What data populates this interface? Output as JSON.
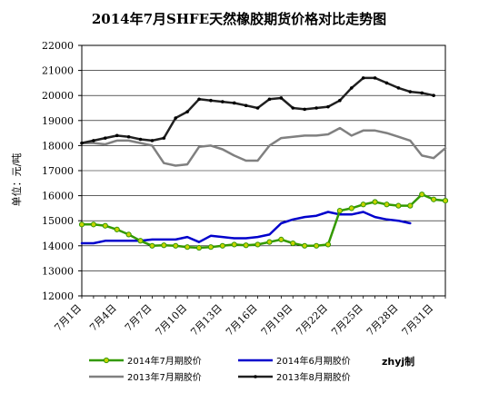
{
  "chart_data": {
    "type": "line",
    "title": "2014年7月SHFE天然橡胶期货价格对比走势图",
    "ylabel": "单位：元/吨",
    "xlabel": "",
    "ylim": [
      12000,
      22000
    ],
    "yticks": [
      12000,
      13000,
      14000,
      15000,
      16000,
      17000,
      18000,
      19000,
      20000,
      21000,
      22000
    ],
    "x_range": [
      1,
      32
    ],
    "x_ticks": [
      1,
      4,
      7,
      10,
      13,
      16,
      19,
      22,
      25,
      28,
      31
    ],
    "x_tick_labels": [
      "7月1日",
      "7月4日",
      "7月7日",
      "7月10日",
      "7月13日",
      "7月16日",
      "7月19日",
      "7月22日",
      "7月25日",
      "7月28日",
      "7月31日"
    ],
    "grid": "horizontal",
    "legend_position": "bottom",
    "credit": "zhyj制",
    "series": [
      {
        "name": "2014年7月期胶价",
        "color": "#339900",
        "marker": "circle",
        "marker_color": "#c8d400",
        "x": [
          1,
          2,
          3,
          4,
          5,
          6,
          7,
          8,
          9,
          10,
          11,
          12,
          13,
          14,
          15,
          16,
          17,
          18,
          19,
          20,
          21,
          22,
          23,
          24,
          25,
          26,
          27,
          28,
          29,
          30,
          31,
          32
        ],
        "y": [
          14850,
          14850,
          14800,
          14650,
          14450,
          14200,
          14000,
          14020,
          14000,
          13950,
          13920,
          13950,
          14000,
          14050,
          14020,
          14050,
          14150,
          14250,
          14100,
          14000,
          14000,
          14050,
          15400,
          15500,
          15650,
          15750,
          15650,
          15600,
          15600,
          16050,
          15850,
          15800
        ]
      },
      {
        "name": "2014年6月期胶价",
        "color": "#0000cc",
        "marker": "none",
        "x": [
          1,
          2,
          3,
          4,
          5,
          6,
          7,
          8,
          9,
          10,
          11,
          12,
          13,
          14,
          15,
          16,
          17,
          18,
          19,
          20,
          21,
          22,
          23,
          24,
          25,
          26,
          27,
          28,
          29
        ],
        "y": [
          14100,
          14100,
          14200,
          14200,
          14200,
          14200,
          14250,
          14250,
          14250,
          14350,
          14150,
          14400,
          14350,
          14300,
          14300,
          14350,
          14450,
          14900,
          15050,
          15150,
          15200,
          15350,
          15250,
          15250,
          15350,
          15150,
          15050,
          15000,
          14900
        ]
      },
      {
        "name": "2013年7月期胶价",
        "color": "#808080",
        "marker": "none",
        "x": [
          1,
          2,
          3,
          4,
          5,
          6,
          7,
          8,
          9,
          10,
          11,
          12,
          13,
          14,
          15,
          16,
          17,
          18,
          19,
          20,
          21,
          22,
          23,
          24,
          25,
          26,
          27,
          28,
          29,
          30,
          31,
          32
        ],
        "y": [
          18100,
          18100,
          18050,
          18200,
          18200,
          18100,
          18000,
          17300,
          17200,
          17250,
          17950,
          18000,
          17850,
          17600,
          17400,
          17400,
          18000,
          18300,
          18350,
          18400,
          18400,
          18450,
          18700,
          18400,
          18600,
          18600,
          18500,
          18350,
          18200,
          17600,
          17500,
          17900
        ]
      },
      {
        "name": "2013年8月期胶价",
        "color": "#202020",
        "marker": "dot",
        "x": [
          1,
          2,
          3,
          4,
          5,
          6,
          7,
          8,
          9,
          10,
          11,
          12,
          13,
          14,
          15,
          16,
          17,
          18,
          19,
          20,
          21,
          22,
          23,
          24,
          25,
          26,
          27,
          28,
          29,
          30,
          31
        ],
        "y": [
          18100,
          18200,
          18300,
          18400,
          18350,
          18250,
          18200,
          18300,
          19100,
          19350,
          19850,
          19800,
          19750,
          19700,
          19600,
          19500,
          19850,
          19900,
          19500,
          19450,
          19500,
          19550,
          19800,
          20300,
          20700,
          20700,
          20500,
          20300,
          20150,
          20100,
          20000
        ]
      }
    ]
  }
}
